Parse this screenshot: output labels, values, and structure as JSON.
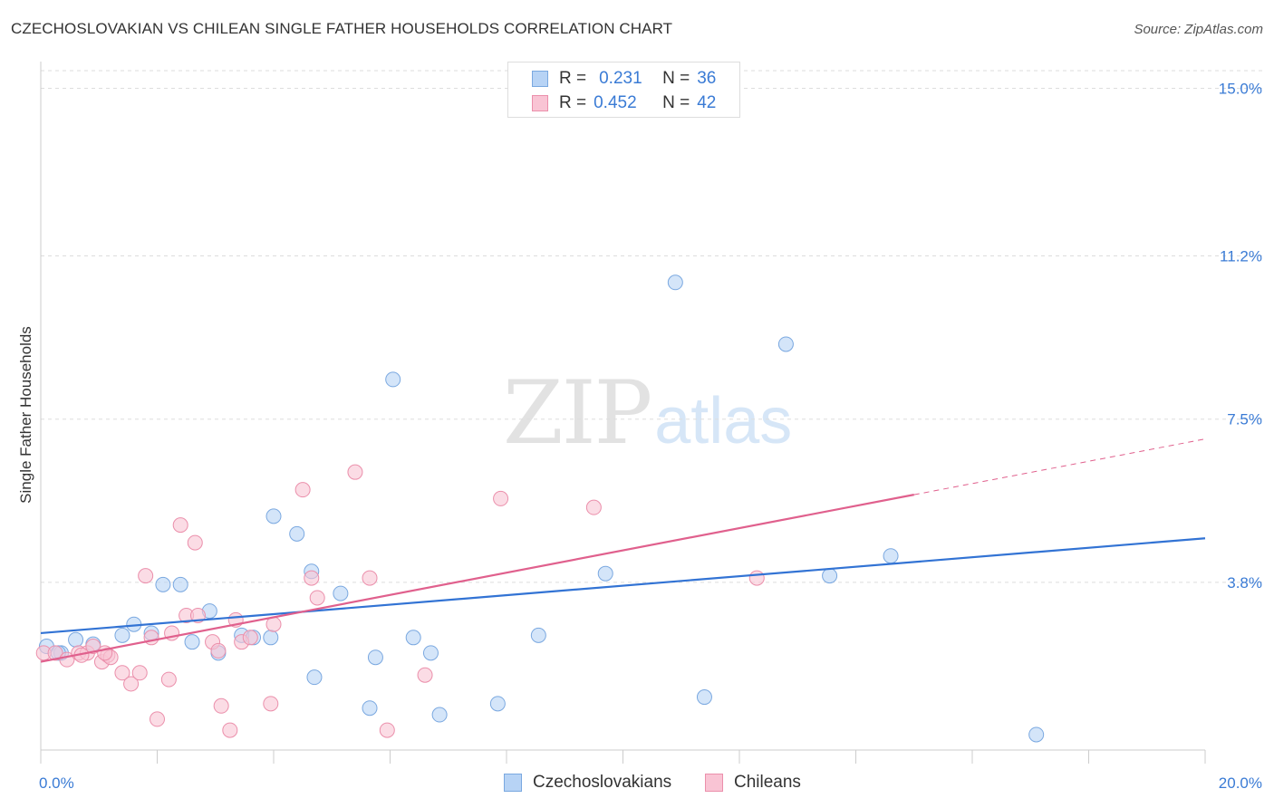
{
  "header": {
    "title": "CZECHOSLOVAKIAN VS CHILEAN SINGLE FATHER HOUSEHOLDS CORRELATION CHART",
    "source": "Source: ZipAtlas.com"
  },
  "watermark": {
    "zip": "ZIP",
    "atlas": "atlas"
  },
  "legend": {
    "rows": [
      {
        "r_label": "R =",
        "r_value": "0.231",
        "n_label": "N =",
        "n_value": "36"
      },
      {
        "r_label": "R =",
        "r_value": "0.452",
        "n_label": "N =",
        "n_value": "42"
      }
    ]
  },
  "bottom_legend": {
    "items": [
      {
        "label": "Czechoslovakians"
      },
      {
        "label": "Chileans"
      }
    ]
  },
  "colors": {
    "czech_fill": "#b7d3f5",
    "czech_stroke": "#7aa8e0",
    "czech_line": "#3273d4",
    "chile_fill": "#f9c4d4",
    "chile_stroke": "#eb8fab",
    "chile_line": "#e0608d",
    "tick_label": "#3a7bd5",
    "grid": "#dddddd"
  },
  "chart_data": {
    "type": "scatter",
    "title": "CZECHOSLOVAKIAN VS CHILEAN SINGLE FATHER HOUSEHOLDS CORRELATION CHART",
    "xlabel": "",
    "ylabel": "Single Father Households",
    "xlim": [
      0,
      20
    ],
    "ylim": [
      0,
      15.4
    ],
    "x_tick_labels": [
      "0.0%",
      "20.0%"
    ],
    "y_ticks": [
      3.8,
      7.5,
      11.2,
      15.0
    ],
    "y_tick_labels": [
      "3.8%",
      "7.5%",
      "11.2%",
      "15.0%"
    ],
    "grid": true,
    "legend_placement": "top-center",
    "series": [
      {
        "name": "Czechoslovakians",
        "R": 0.231,
        "N": 36,
        "trend": {
          "x": [
            0,
            20
          ],
          "y": [
            2.65,
            4.8
          ],
          "dashed_from": null
        },
        "points": [
          [
            0.1,
            2.35
          ],
          [
            0.35,
            2.2
          ],
          [
            0.6,
            2.5
          ],
          [
            0.9,
            2.4
          ],
          [
            1.4,
            2.6
          ],
          [
            1.6,
            2.85
          ],
          [
            1.9,
            2.65
          ],
          [
            2.1,
            3.75
          ],
          [
            2.4,
            3.75
          ],
          [
            2.6,
            2.45
          ],
          [
            2.9,
            3.15
          ],
          [
            3.05,
            2.2
          ],
          [
            3.45,
            2.6
          ],
          [
            3.65,
            2.55
          ],
          [
            3.95,
            2.55
          ],
          [
            4.0,
            5.3
          ],
          [
            4.4,
            4.9
          ],
          [
            4.65,
            4.05
          ],
          [
            4.7,
            1.65
          ],
          [
            5.15,
            3.55
          ],
          [
            5.65,
            0.95
          ],
          [
            5.75,
            2.1
          ],
          [
            6.05,
            8.4
          ],
          [
            6.4,
            2.55
          ],
          [
            6.7,
            2.2
          ],
          [
            6.85,
            0.8
          ],
          [
            7.85,
            1.05
          ],
          [
            8.55,
            2.6
          ],
          [
            9.7,
            4.0
          ],
          [
            10.9,
            10.6
          ],
          [
            11.4,
            1.2
          ],
          [
            12.8,
            9.2
          ],
          [
            13.55,
            3.95
          ],
          [
            14.6,
            4.4
          ],
          [
            17.1,
            0.35
          ],
          [
            0.3,
            2.2
          ]
        ]
      },
      {
        "name": "Chileans",
        "R": 0.452,
        "N": 42,
        "trend": {
          "x": [
            0,
            20
          ],
          "y": [
            2.0,
            7.05
          ],
          "dashed_from": 15.0
        },
        "points": [
          [
            0.05,
            2.2
          ],
          [
            0.25,
            2.2
          ],
          [
            0.45,
            2.05
          ],
          [
            0.65,
            2.2
          ],
          [
            0.8,
            2.2
          ],
          [
            0.9,
            2.35
          ],
          [
            1.05,
            2.0
          ],
          [
            1.15,
            2.15
          ],
          [
            1.2,
            2.1
          ],
          [
            1.4,
            1.75
          ],
          [
            1.55,
            1.5
          ],
          [
            1.7,
            1.75
          ],
          [
            1.8,
            3.95
          ],
          [
            1.9,
            2.55
          ],
          [
            2.0,
            0.7
          ],
          [
            2.2,
            1.6
          ],
          [
            2.25,
            2.65
          ],
          [
            2.4,
            5.1
          ],
          [
            2.5,
            3.05
          ],
          [
            2.65,
            4.7
          ],
          [
            2.7,
            3.05
          ],
          [
            2.95,
            2.45
          ],
          [
            3.05,
            2.25
          ],
          [
            3.1,
            1.0
          ],
          [
            3.25,
            0.45
          ],
          [
            3.35,
            2.95
          ],
          [
            3.45,
            2.45
          ],
          [
            3.6,
            2.55
          ],
          [
            3.95,
            1.05
          ],
          [
            4.0,
            2.85
          ],
          [
            4.5,
            5.9
          ],
          [
            4.65,
            3.9
          ],
          [
            4.75,
            3.45
          ],
          [
            5.4,
            6.3
          ],
          [
            5.65,
            3.9
          ],
          [
            5.95,
            0.45
          ],
          [
            6.6,
            1.7
          ],
          [
            7.9,
            5.7
          ],
          [
            9.5,
            5.5
          ],
          [
            12.3,
            3.9
          ],
          [
            0.7,
            2.15
          ],
          [
            1.1,
            2.2
          ]
        ]
      }
    ]
  }
}
